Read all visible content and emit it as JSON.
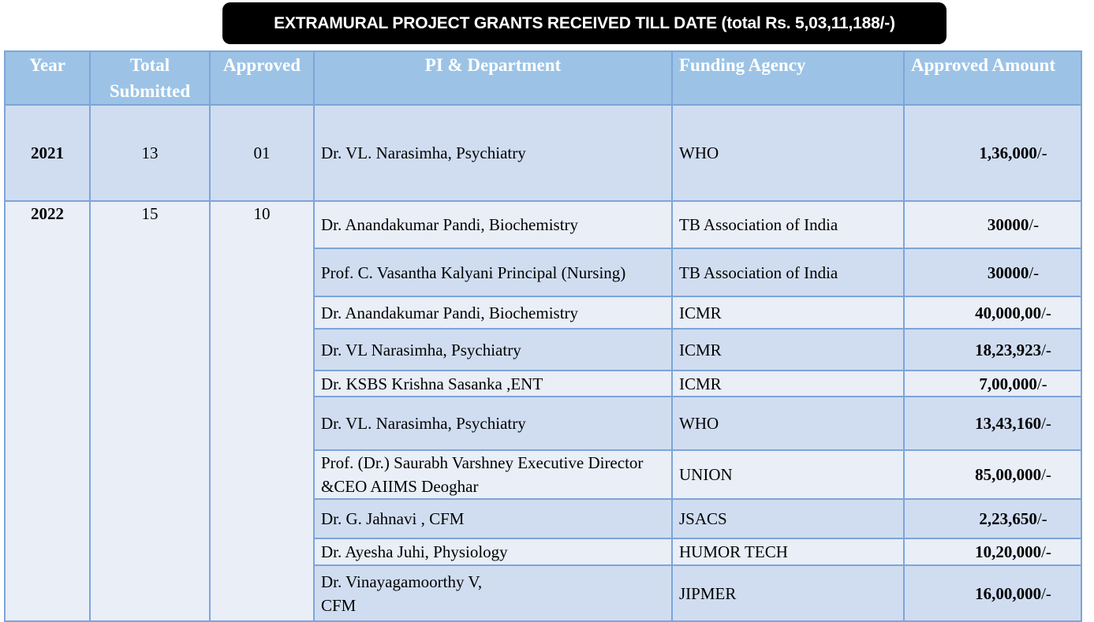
{
  "title": "EXTRAMURAL PROJECT GRANTS RECEIVED TILL DATE  (total Rs. 5,03,11,188/-)",
  "headers": {
    "year": "Year",
    "total_submitted": "Total Submitted",
    "approved": "Approved",
    "pi_department": "PI & Department",
    "funding_agency": "Funding Agency",
    "approved_amount": "Approved Amount"
  },
  "groups": [
    {
      "year": "2021",
      "total_submitted": "13",
      "approved": "01",
      "rows": [
        {
          "pi": "Dr. VL. Narasimha, Psychiatry",
          "agency": "WHO",
          "amount": "1,36,000",
          "suffix": "/-"
        }
      ]
    },
    {
      "year": "2022",
      "total_submitted": "15",
      "approved": "10",
      "rows": [
        {
          "pi": "Dr. Anandakumar Pandi, Biochemistry",
          "agency": "TB Association of India",
          "amount": "30000",
          "suffix": "/-"
        },
        {
          "pi": "Prof. C. Vasantha Kalyani  Principal (Nursing)",
          "agency": "TB Association of India",
          "amount": "30000",
          "suffix": "/-"
        },
        {
          "pi": "Dr. Anandakumar Pandi, Biochemistry",
          "agency": "ICMR",
          "amount": "40,000,00",
          "suffix": "/-"
        },
        {
          "pi": "Dr. VL Narasimha, Psychiatry",
          "agency": "ICMR",
          "amount": "18,23,923",
          "suffix": "/-"
        },
        {
          "pi": "Dr. KSBS Krishna Sasanka ,ENT",
          "agency": "ICMR",
          "amount": "7,00,000",
          "suffix": "/-"
        },
        {
          "pi": "Dr. VL. Narasimha, Psychiatry",
          "agency": "WHO",
          "amount": "13,43,160",
          "suffix": "/-"
        },
        {
          "pi": "Prof. (Dr.) Saurabh Varshney Executive Director &CEO AIIMS Deoghar",
          "agency": "UNION",
          "amount": "85,00,000",
          "suffix": "/-"
        },
        {
          "pi": "Dr. G. Jahnavi , CFM",
          "agency": "JSACS",
          "amount": "2,23,650",
          "suffix": "/-"
        },
        {
          "pi": "Dr. Ayesha Juhi, Physiology",
          "agency": " HUMOR TECH",
          "amount": "10,20,000",
          "suffix": "/-"
        },
        {
          "pi": "Dr. Vinayagamoorthy V, CFM",
          "agency": "JIPMER",
          "amount": "16,00,000",
          "suffix": "/-"
        }
      ]
    }
  ],
  "colors": {
    "header_bg": "#9cc3e6",
    "row_dark": "#d0ddf1",
    "row_light": "#e9eef7",
    "border": "#7da5d8",
    "banner_bg": "#000000"
  }
}
